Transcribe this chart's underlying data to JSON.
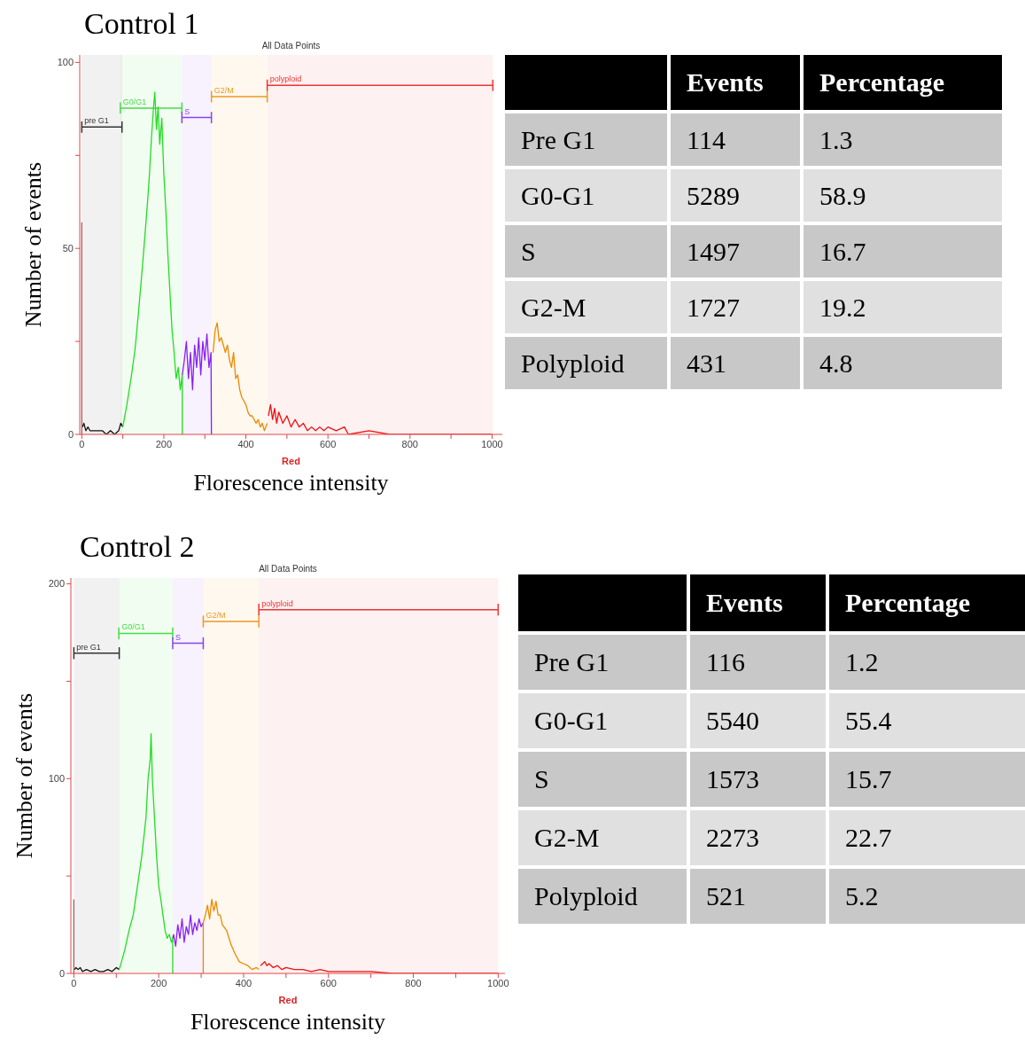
{
  "chart_data": [
    {
      "type": "line",
      "title": "Control 1",
      "subtitle": "All Data Points",
      "xlabel": "Florescence intensity",
      "ylabel": "Number of events",
      "annotations": [
        "Red"
      ],
      "marker": "none",
      "xlim": [
        -5,
        1025
      ],
      "ylim": [
        0,
        102
      ],
      "xticks": [
        0,
        {
          "value": 100,
          "label": null
        },
        200,
        {
          "value": 300,
          "label": null
        },
        400,
        {
          "value": 500,
          "label": null
        },
        600,
        {
          "value": 700,
          "label": null
        },
        800,
        {
          "value": 900,
          "label": null
        },
        1000
      ],
      "yticks": [
        0,
        {
          "value": 25,
          "label": null
        },
        50,
        {
          "value": 75,
          "label": null
        },
        100
      ],
      "series": [
        {
          "color": "#a06060",
          "x": [
            0,
            0
          ],
          "values": [
            0,
            57
          ]
        },
        {
          "color": "#111111",
          "x": [
            2,
            5,
            10,
            15,
            20,
            30,
            40,
            50,
            60,
            70,
            80,
            90,
            95,
            100
          ],
          "values": [
            2,
            3,
            1,
            2,
            1,
            1,
            1,
            1,
            0,
            1,
            0,
            1,
            3,
            2
          ]
        },
        {
          "color": "#22dd22",
          "x": [
            100,
            110,
            120,
            130,
            140,
            150,
            160,
            165,
            170,
            175,
            178,
            182,
            186,
            190,
            195,
            200,
            205,
            210,
            215,
            220,
            225,
            230,
            235,
            240,
            245,
            245
          ],
          "values": [
            2,
            8,
            15,
            23,
            35,
            48,
            62,
            70,
            80,
            88,
            92,
            82,
            88,
            78,
            85,
            70,
            60,
            48,
            38,
            28,
            22,
            15,
            18,
            12,
            16,
            0
          ]
        },
        {
          "color": "#8822ee",
          "x": [
            245,
            250,
            255,
            260,
            265,
            270,
            275,
            280,
            285,
            290,
            295,
            300,
            305,
            310,
            315,
            316
          ],
          "values": [
            16,
            20,
            25,
            15,
            22,
            12,
            24,
            18,
            26,
            16,
            25,
            20,
            27,
            18,
            22,
            0
          ]
        },
        {
          "color": "#ee8800",
          "x": [
            320,
            325,
            330,
            335,
            340,
            345,
            350,
            355,
            360,
            365,
            370,
            375,
            380,
            385,
            390,
            395,
            400,
            405,
            410,
            415,
            420,
            425,
            430,
            435,
            440,
            445,
            452
          ],
          "values": [
            22,
            28,
            30,
            25,
            26,
            24,
            22,
            24,
            20,
            18,
            22,
            15,
            16,
            12,
            10,
            9,
            8,
            6,
            5,
            5,
            4,
            3,
            4,
            2,
            3,
            1,
            3
          ]
        },
        {
          "color": "#ee1111",
          "x": [
            455,
            460,
            465,
            470,
            475,
            480,
            490,
            500,
            510,
            520,
            530,
            540,
            550,
            560,
            570,
            580,
            590,
            600,
            620,
            640,
            650,
            700,
            750,
            800,
            850,
            900,
            950,
            1000
          ],
          "values": [
            5,
            8,
            4,
            7,
            3,
            6,
            3,
            5,
            2,
            4,
            2,
            3,
            1,
            2,
            1,
            2,
            1,
            2,
            1,
            2,
            0,
            1,
            0,
            0,
            0,
            0,
            0,
            0
          ]
        }
      ],
      "bands": [
        {
          "axis": "x",
          "from": 0,
          "to": 98,
          "label": "pre G1",
          "color": "#333333"
        },
        {
          "axis": "x",
          "from": 94,
          "to": 244,
          "label": "G0/G1",
          "color": "#44dd44"
        },
        {
          "axis": "x",
          "from": 244,
          "to": 316,
          "label": "S",
          "color": "#8844ee"
        },
        {
          "axis": "x",
          "from": 316,
          "to": 452,
          "label": "G2/M",
          "color": "#ee9922"
        },
        {
          "axis": "x",
          "from": 452,
          "to": 1002,
          "label": "polyploid",
          "color": "#ee3333"
        }
      ]
    },
    {
      "type": "other",
      "categories": [
        "Pre G1",
        "G0-G1",
        "S",
        "G2-M",
        "Polyploid"
      ],
      "data_labels": true,
      "series": [
        {
          "name": "Events",
          "values": [
            114,
            5289,
            1497,
            1727,
            431
          ],
          "colors": [
            "#c8c8c8",
            "#e0e0e0",
            "#c8c8c8",
            "#e0e0e0",
            "#c8c8c8"
          ]
        },
        {
          "name": "Percentage",
          "values": [
            1.3,
            58.9,
            16.7,
            19.2,
            4.8
          ],
          "colors": [
            "#c8c8c8",
            "#e0e0e0",
            "#c8c8c8",
            "#e0e0e0",
            "#c8c8c8"
          ]
        }
      ]
    },
    {
      "type": "line",
      "title": "Control 2",
      "subtitle": "All Data Points",
      "xlabel": "Florescence intensity",
      "ylabel": "Number of events",
      "annotations": [
        "Red"
      ],
      "marker": "none",
      "xlim": [
        -7,
        1016
      ],
      "ylim": [
        0,
        203
      ],
      "xticks": [
        0,
        {
          "value": 100,
          "label": null
        },
        200,
        {
          "value": 300,
          "label": null
        },
        400,
        {
          "value": 500,
          "label": null
        },
        600,
        {
          "value": 700,
          "label": null
        },
        800,
        {
          "value": 900,
          "label": null
        },
        1000
      ],
      "yticks": [
        0,
        {
          "value": 50,
          "label": null
        },
        100,
        {
          "value": 150,
          "label": null
        },
        200
      ],
      "series": [
        {
          "color": "#a06060",
          "x": [
            0,
            0
          ],
          "values": [
            0,
            38
          ]
        },
        {
          "color": "#111111",
          "x": [
            2,
            5,
            10,
            15,
            20,
            30,
            40,
            50,
            60,
            70,
            80,
            90,
            100,
            107
          ],
          "values": [
            2,
            3,
            2,
            3,
            1,
            2,
            1,
            2,
            1,
            1,
            2,
            1,
            3,
            2
          ]
        },
        {
          "color": "#22dd22",
          "x": [
            107,
            115,
            120,
            130,
            140,
            150,
            160,
            170,
            175,
            180,
            182,
            185,
            190,
            195,
            200,
            205,
            210,
            215,
            220,
            225,
            230,
            233,
            233
          ],
          "values": [
            2,
            8,
            12,
            22,
            30,
            45,
            60,
            80,
            100,
            110,
            123,
            100,
            80,
            60,
            45,
            38,
            30,
            22,
            18,
            20,
            16,
            18,
            0
          ]
        },
        {
          "color": "#8822ee",
          "x": [
            233,
            235,
            240,
            245,
            250,
            255,
            260,
            265,
            270,
            275,
            280,
            285,
            290,
            295,
            300,
            305
          ],
          "values": [
            18,
            20,
            14,
            25,
            18,
            28,
            16,
            24,
            20,
            30,
            20,
            26,
            22,
            28,
            24,
            26
          ]
        },
        {
          "color": "#ee8800",
          "x": [
            305,
            305,
            310,
            315,
            320,
            325,
            330,
            335,
            340,
            345,
            350,
            360,
            370,
            380,
            390,
            400,
            410,
            420,
            430,
            436
          ],
          "values": [
            0,
            26,
            30,
            35,
            28,
            38,
            32,
            37,
            30,
            30,
            25,
            22,
            15,
            10,
            6,
            5,
            4,
            2,
            3,
            2
          ]
        },
        {
          "color": "#ee1111",
          "x": [
            440,
            450,
            455,
            460,
            470,
            480,
            490,
            500,
            520,
            540,
            560,
            580,
            600,
            650,
            700,
            750,
            800,
            900,
            1000
          ],
          "values": [
            4,
            6,
            4,
            5,
            3,
            4,
            2,
            3,
            2,
            2,
            1,
            2,
            1,
            1,
            1,
            0,
            0,
            0,
            0
          ]
        }
      ],
      "bands": [
        {
          "axis": "x",
          "from": 0,
          "to": 107,
          "label": "pre G1",
          "color": "#333333"
        },
        {
          "axis": "x",
          "from": 106,
          "to": 233,
          "label": "G0/G1",
          "color": "#44dd44"
        },
        {
          "axis": "x",
          "from": 233,
          "to": 305,
          "label": "S",
          "color": "#8844ee"
        },
        {
          "axis": "x",
          "from": 305,
          "to": 436,
          "label": "G2/M",
          "color": "#ee9922"
        },
        {
          "axis": "x",
          "from": 436,
          "to": 1000,
          "label": "polyploid",
          "color": "#ee3333"
        }
      ]
    },
    {
      "type": "other",
      "categories": [
        "Pre G1",
        "G0-G1",
        "S",
        "G2-M",
        "Polyploid"
      ],
      "data_labels": true,
      "series": [
        {
          "name": "Events",
          "values": [
            116,
            5540,
            1573,
            2273,
            521
          ],
          "colors": [
            "#c8c8c8",
            "#e0e0e0",
            "#c8c8c8",
            "#e0e0e0",
            "#c8c8c8"
          ]
        },
        {
          "name": "Percentage",
          "values": [
            1.2,
            55.4,
            15.7,
            22.7,
            5.2
          ],
          "colors": [
            "#c8c8c8",
            "#e0e0e0",
            "#c8c8c8",
            "#e0e0e0",
            "#c8c8c8"
          ]
        }
      ]
    }
  ]
}
